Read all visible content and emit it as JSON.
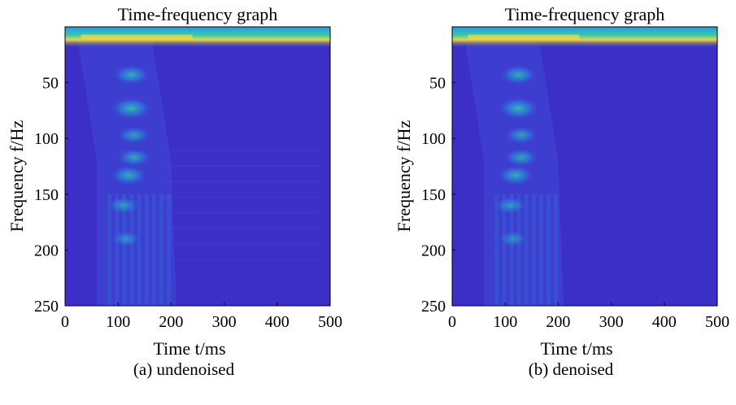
{
  "colors": {
    "background": "#3b2fc8",
    "low": "#3f4bd6",
    "mid": "#1f9ee0",
    "high": "#39c7a8",
    "peak": "#f1d33a"
  },
  "panels": [
    {
      "caption": "(a) undenoised",
      "chart_data": {
        "type": "heatmap",
        "title": "Time-frequency graph",
        "xlabel": "Time  t/ms",
        "ylabel": "Frequency  f/Hz",
        "xlim": [
          0,
          500
        ],
        "ylim": [
          0,
          250
        ],
        "y_reversed": true,
        "xticks": [
          0,
          100,
          200,
          300,
          400,
          500
        ],
        "yticks": [
          50,
          100,
          150,
          200,
          250
        ],
        "colormap": "parula",
        "bright_spots": [
          {
            "t": 120,
            "f": 8,
            "intensity": 1.0
          },
          {
            "t": 125,
            "f": 43,
            "intensity": 0.6
          },
          {
            "t": 125,
            "f": 73,
            "intensity": 0.75
          },
          {
            "t": 130,
            "f": 97,
            "intensity": 0.45
          },
          {
            "t": 130,
            "f": 117,
            "intensity": 0.5
          },
          {
            "t": 120,
            "f": 133,
            "intensity": 0.6
          },
          {
            "t": 110,
            "f": 160,
            "intensity": 0.4
          },
          {
            "t": 115,
            "f": 190,
            "intensity": 0.3
          }
        ],
        "noise": true
      }
    },
    {
      "caption": "(b) denoised",
      "chart_data": {
        "type": "heatmap",
        "title": "Time-frequency graph",
        "xlabel": "Time  t/ms",
        "ylabel": "Frequency  f/Hz",
        "xlim": [
          0,
          500
        ],
        "ylim": [
          0,
          250
        ],
        "y_reversed": true,
        "xticks": [
          0,
          100,
          200,
          300,
          400,
          500
        ],
        "yticks": [
          50,
          100,
          150,
          200,
          250
        ],
        "colormap": "parula",
        "bright_spots": [
          {
            "t": 120,
            "f": 8,
            "intensity": 1.0
          },
          {
            "t": 125,
            "f": 43,
            "intensity": 0.6
          },
          {
            "t": 125,
            "f": 73,
            "intensity": 0.75
          },
          {
            "t": 130,
            "f": 97,
            "intensity": 0.45
          },
          {
            "t": 130,
            "f": 117,
            "intensity": 0.5
          },
          {
            "t": 120,
            "f": 133,
            "intensity": 0.6
          },
          {
            "t": 110,
            "f": 160,
            "intensity": 0.4
          },
          {
            "t": 115,
            "f": 190,
            "intensity": 0.3
          }
        ],
        "noise": false
      }
    }
  ]
}
